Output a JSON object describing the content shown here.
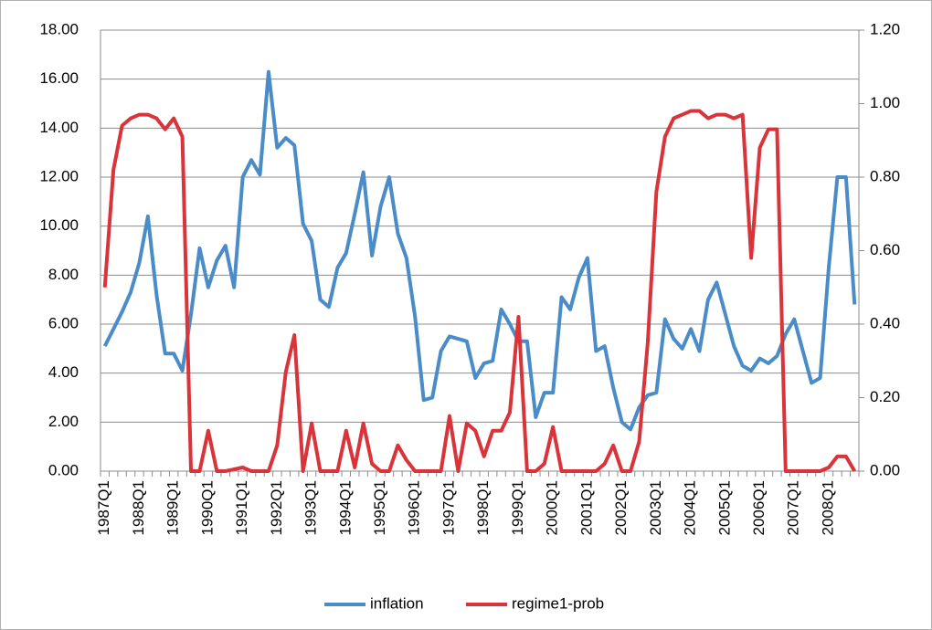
{
  "chart_data": {
    "type": "line",
    "categories": [
      "1987Q1",
      null,
      null,
      null,
      "1988Q1",
      null,
      null,
      null,
      "1989Q1",
      null,
      null,
      null,
      "1990Q1",
      null,
      null,
      null,
      "1991Q1",
      null,
      null,
      null,
      "1992Q1",
      null,
      null,
      null,
      "1993Q1",
      null,
      null,
      null,
      "1994Q1",
      null,
      null,
      null,
      "1995Q1",
      null,
      null,
      null,
      "1996Q1",
      null,
      null,
      null,
      "1997Q1",
      null,
      null,
      null,
      "1998Q1",
      null,
      null,
      null,
      "1999Q1",
      null,
      null,
      null,
      "2000Q1",
      null,
      null,
      null,
      "2001Q1",
      null,
      null,
      null,
      "2002Q1",
      null,
      null,
      null,
      "2003Q1",
      null,
      null,
      null,
      "2004Q1",
      null,
      null,
      null,
      "2005Q1",
      null,
      null,
      null,
      "2006Q1",
      null,
      null,
      null,
      "2007Q1",
      null,
      null,
      null,
      "2008Q1",
      null,
      null,
      null
    ],
    "series": [
      {
        "name": "inflation",
        "color": "#4a8cc8",
        "axis": "y",
        "values": [
          5.1,
          5.8,
          6.5,
          7.3,
          8.5,
          10.4,
          7.2,
          4.8,
          4.8,
          4.1,
          6.4,
          9.1,
          7.5,
          8.6,
          9.2,
          7.5,
          12.0,
          12.7,
          12.1,
          16.3,
          13.2,
          13.6,
          13.3,
          10.1,
          9.4,
          7.0,
          6.7,
          8.3,
          8.9,
          10.5,
          12.2,
          8.8,
          10.8,
          12.0,
          9.7,
          8.7,
          6.3,
          2.9,
          3.0,
          4.9,
          5.5,
          5.4,
          5.3,
          3.8,
          4.4,
          4.5,
          6.6,
          6.0,
          5.3,
          5.3,
          2.2,
          3.2,
          3.2,
          7.1,
          6.6,
          7.9,
          8.7,
          4.9,
          5.1,
          3.4,
          2.0,
          1.7,
          2.6,
          3.1,
          3.2,
          6.2,
          5.4,
          5.0,
          5.8,
          4.9,
          7.0,
          7.7,
          6.4,
          5.1,
          4.3,
          4.1,
          4.6,
          4.4,
          4.7,
          5.6,
          6.2,
          4.9,
          3.6,
          3.8,
          8.3,
          12.0,
          12.0,
          6.8
        ]
      },
      {
        "name": "regime1-prob",
        "color": "#d9343a",
        "axis": "y2",
        "values": [
          0.5,
          0.82,
          0.94,
          0.96,
          0.97,
          0.97,
          0.96,
          0.93,
          0.96,
          0.91,
          0.0,
          0.0,
          0.11,
          0.0,
          0.0,
          0.005,
          0.01,
          0.0,
          0.0,
          0.0,
          0.07,
          0.27,
          0.37,
          0.0,
          0.13,
          0.0,
          0.0,
          0.0,
          0.11,
          0.01,
          0.13,
          0.02,
          0.0,
          0.0,
          0.07,
          0.03,
          0.0,
          0.0,
          0.0,
          0.0,
          0.15,
          0.0,
          0.13,
          0.11,
          0.04,
          0.11,
          0.11,
          0.16,
          0.42,
          0.0,
          0.0,
          0.02,
          0.12,
          0.0,
          0.0,
          0.0,
          0.0,
          0.0,
          0.02,
          0.07,
          0.0,
          0.0,
          0.08,
          0.35,
          0.76,
          0.91,
          0.96,
          0.97,
          0.98,
          0.98,
          0.96,
          0.97,
          0.97,
          0.96,
          0.97,
          0.58,
          0.88,
          0.93,
          0.93,
          0.0,
          0.0,
          0.0,
          0.0,
          0.0,
          0.01,
          0.04,
          0.04,
          0.0
        ]
      }
    ],
    "ylim": [
      0,
      18
    ],
    "yticks": [
      {
        "value": 0,
        "label": "0.00"
      },
      {
        "value": 2,
        "label": "2.00"
      },
      {
        "value": 4,
        "label": "4.00"
      },
      {
        "value": 6,
        "label": "6.00"
      },
      {
        "value": 8,
        "label": "8.00"
      },
      {
        "value": 10,
        "label": "10.00"
      },
      {
        "value": 12,
        "label": "12.00"
      },
      {
        "value": 14,
        "label": "14.00"
      },
      {
        "value": 16,
        "label": "16.00"
      },
      {
        "value": 18,
        "label": "18.00"
      }
    ],
    "y2lim": [
      0,
      1.2
    ],
    "y2ticks": [
      {
        "value": 0,
        "label": "0.00"
      },
      {
        "value": 0.2,
        "label": "0.20"
      },
      {
        "value": 0.4,
        "label": "0.40"
      },
      {
        "value": 0.6,
        "label": "0.60"
      },
      {
        "value": 0.8,
        "label": "0.80"
      },
      {
        "value": 1.0,
        "label": "1.00"
      },
      {
        "value": 1.2,
        "label": "1.20"
      }
    ],
    "grid": true,
    "legend": "bottom"
  }
}
